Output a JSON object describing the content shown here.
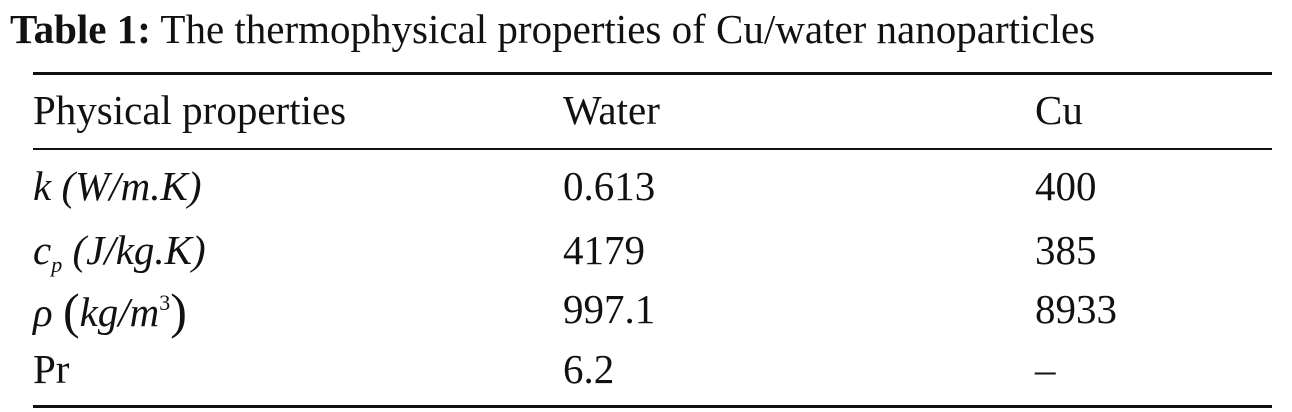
{
  "caption": {
    "label": "Table 1:",
    "text": "The thermophysical properties of Cu/water nanoparticles"
  },
  "table": {
    "headers": [
      "Physical properties",
      "Water",
      "Cu"
    ],
    "rows": [
      {
        "property": {
          "symbol": "k",
          "unit": "(W/m.K)"
        },
        "water": "0.613",
        "cu": "400"
      },
      {
        "property": {
          "symbol": "c",
          "subscript": "p",
          "unit": "(J/kg.K)"
        },
        "water": "4179",
        "cu": "385"
      },
      {
        "property": {
          "symbol": "ρ",
          "open": "(",
          "unit": "kg/m",
          "superscript": "3",
          "close": ")"
        },
        "water": "997.1",
        "cu": "8933"
      },
      {
        "property": {
          "name": "Pr"
        },
        "water": "6.2",
        "cu": "–"
      }
    ]
  }
}
